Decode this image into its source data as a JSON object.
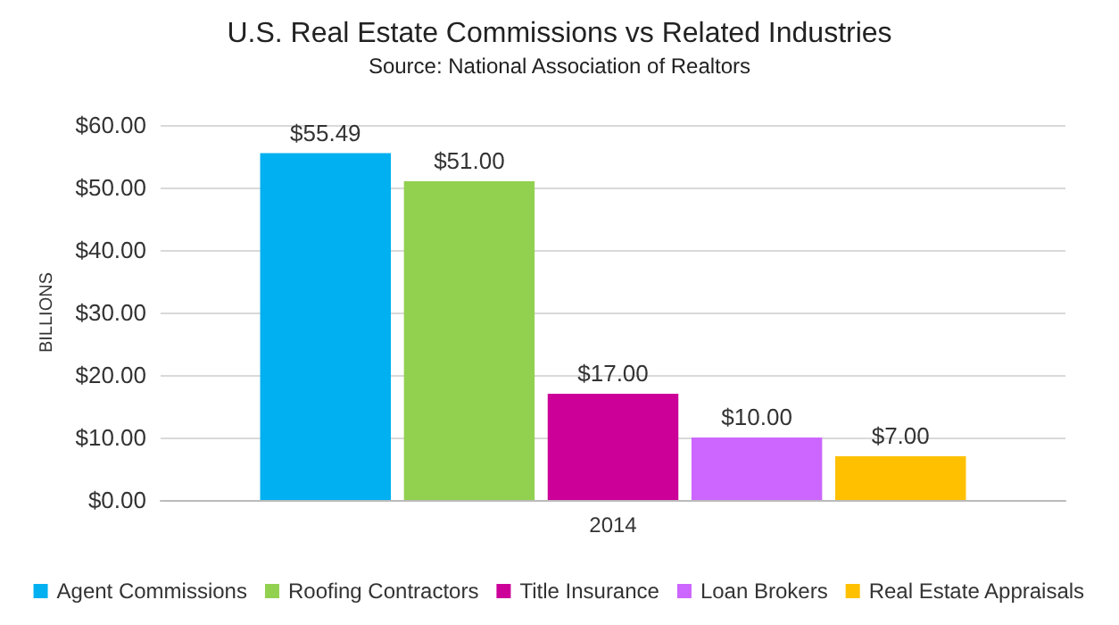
{
  "chart_data": {
    "type": "bar",
    "title": "U.S. Real Estate Commissions vs Related Industries",
    "subtitle": "Source: National Association of Realtors",
    "ylabel": "BILLIONS",
    "categories": [
      "2014"
    ],
    "series": [
      {
        "name": "Agent Commissions",
        "color": "#00b0f0",
        "values": [
          55.49
        ],
        "value_labels": [
          "$55.49"
        ]
      },
      {
        "name": "Roofing Contractors",
        "color": "#92d050",
        "values": [
          51.0
        ],
        "value_labels": [
          "$51.00"
        ]
      },
      {
        "name": "Title Insurance",
        "color": "#cc0099",
        "values": [
          17.0
        ],
        "value_labels": [
          "$17.00"
        ]
      },
      {
        "name": "Loan Brokers",
        "color": "#cc66ff",
        "values": [
          10.0
        ],
        "value_labels": [
          "$10.00"
        ]
      },
      {
        "name": "Real Estate Appraisals",
        "color": "#ffc000",
        "values": [
          7.0
        ],
        "value_labels": [
          "$7.00"
        ]
      }
    ],
    "ylim": [
      0,
      60
    ],
    "yticks": [
      {
        "value": 0,
        "label": "$0.00"
      },
      {
        "value": 10,
        "label": "$10.00"
      },
      {
        "value": 20,
        "label": "$20.00"
      },
      {
        "value": 30,
        "label": "$30.00"
      },
      {
        "value": 40,
        "label": "$40.00"
      },
      {
        "value": 50,
        "label": "$50.00"
      },
      {
        "value": 60,
        "label": "$60.00"
      }
    ],
    "grid": "y",
    "legend": "bottom"
  }
}
